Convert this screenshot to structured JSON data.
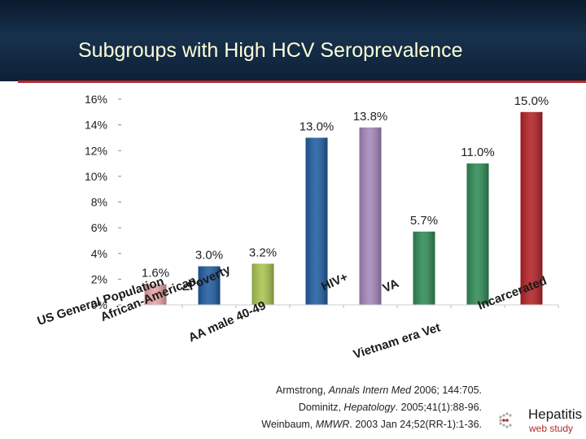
{
  "title": "Subgroups with High HCV Seroprevalence",
  "chart_data": {
    "type": "bar",
    "ylim": [
      0,
      16
    ],
    "yticks": [
      0,
      2,
      4,
      6,
      8,
      10,
      12,
      14,
      16
    ],
    "ytick_labels": [
      "0%",
      "2%",
      "4%",
      "6%",
      "8%",
      "10%",
      "12%",
      "14%",
      "16%"
    ],
    "categories": [
      "US General Population",
      "African-American",
      "<Poverty",
      "AA male 40-49",
      "HIV+",
      "VA",
      "Vietnam era Vet",
      "Incarcerated"
    ],
    "values": [
      1.6,
      3.0,
      3.2,
      13.0,
      13.8,
      5.7,
      11.0,
      15.0
    ],
    "data_labels": [
      "1.6%",
      "3.0%",
      "3.2%",
      "13.0%",
      "13.8%",
      "5.7%",
      "11.0%",
      "15.0%"
    ],
    "colors": [
      "#e8a4a6",
      "#1f5ca0",
      "#a9c44e",
      "#1f5ca0",
      "#a586bd",
      "#2e8a55",
      "#2e8a55",
      "#b32125"
    ],
    "grid": false,
    "legend": "none"
  },
  "citations": [
    [
      "Armstrong, ",
      "Annals Intern Med",
      " 2006; 144:705."
    ],
    [
      "Dominitz, ",
      "Hepatology",
      ". 2005;41(1):88-96."
    ],
    [
      "Weinbaum, ",
      "MMWR",
      ". 2003 Jan 24;52(RR-1):1-36."
    ]
  ],
  "logo": {
    "main": "Hepatitis",
    "sub": "web study"
  }
}
